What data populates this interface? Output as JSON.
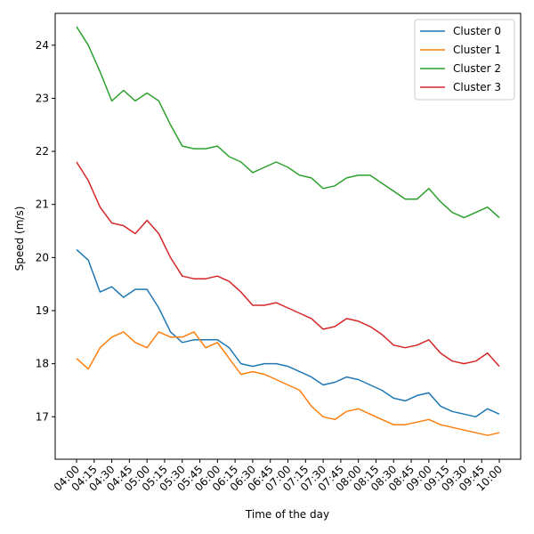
{
  "chart_data": {
    "type": "line",
    "xlabel": "Time of the day",
    "ylabel": "Speed (m/s)",
    "x_ticks": [
      "04:00",
      "04:15",
      "04:30",
      "04:45",
      "05:00",
      "05:15",
      "05:30",
      "05:45",
      "06:00",
      "06:15",
      "06:30",
      "06:45",
      "07:00",
      "07:15",
      "07:30",
      "07:45",
      "08:00",
      "08:15",
      "08:30",
      "08:45",
      "09:00",
      "09:15",
      "09:30",
      "09:45",
      "10:00"
    ],
    "ylim": [
      16.2,
      24.6
    ],
    "y_ticks": [
      17,
      18,
      19,
      20,
      21,
      22,
      23,
      24
    ],
    "legend_position": "top-right",
    "grid": false,
    "series": [
      {
        "name": "Cluster 0",
        "color": "#1f77b4",
        "x": [
          "04:00",
          "04:10",
          "04:20",
          "04:30",
          "04:40",
          "04:50",
          "05:00",
          "05:10",
          "05:20",
          "05:30",
          "05:40",
          "05:50",
          "06:00",
          "06:10",
          "06:20",
          "06:30",
          "06:40",
          "06:50",
          "07:00",
          "07:10",
          "07:20",
          "07:30",
          "07:40",
          "07:50",
          "08:00",
          "08:10",
          "08:20",
          "08:30",
          "08:40",
          "08:50",
          "09:00",
          "09:10",
          "09:20",
          "09:30",
          "09:40",
          "09:50",
          "10:00"
        ],
        "values": [
          20.15,
          19.95,
          19.35,
          19.45,
          19.25,
          19.4,
          19.4,
          19.05,
          18.6,
          18.4,
          18.45,
          18.45,
          18.45,
          18.3,
          18.0,
          17.95,
          18.0,
          18.0,
          17.95,
          17.85,
          17.75,
          17.6,
          17.65,
          17.75,
          17.7,
          17.6,
          17.5,
          17.35,
          17.3,
          17.4,
          17.45,
          17.2,
          17.1,
          17.05,
          17.0,
          17.15,
          17.05
        ]
      },
      {
        "name": "Cluster 1",
        "color": "#ff7f0e",
        "x": [
          "04:00",
          "04:10",
          "04:20",
          "04:30",
          "04:40",
          "04:50",
          "05:00",
          "05:10",
          "05:20",
          "05:30",
          "05:40",
          "05:50",
          "06:00",
          "06:10",
          "06:20",
          "06:30",
          "06:40",
          "06:50",
          "07:00",
          "07:10",
          "07:20",
          "07:30",
          "07:40",
          "07:50",
          "08:00",
          "08:10",
          "08:20",
          "08:30",
          "08:40",
          "08:50",
          "09:00",
          "09:10",
          "09:20",
          "09:30",
          "09:40",
          "09:50",
          "10:00"
        ],
        "values": [
          18.1,
          17.9,
          18.3,
          18.5,
          18.6,
          18.4,
          18.3,
          18.6,
          18.5,
          18.5,
          18.6,
          18.3,
          18.4,
          18.1,
          17.8,
          17.85,
          17.8,
          17.7,
          17.6,
          17.5,
          17.2,
          17.0,
          16.95,
          17.1,
          17.15,
          17.05,
          16.95,
          16.85,
          16.85,
          16.9,
          16.95,
          16.85,
          16.8,
          16.75,
          16.7,
          16.65,
          16.7
        ]
      },
      {
        "name": "Cluster 2",
        "color": "#2ca02c",
        "x": [
          "04:00",
          "04:10",
          "04:20",
          "04:30",
          "04:40",
          "04:50",
          "05:00",
          "05:10",
          "05:20",
          "05:30",
          "05:40",
          "05:50",
          "06:00",
          "06:10",
          "06:20",
          "06:30",
          "06:40",
          "06:50",
          "07:00",
          "07:10",
          "07:20",
          "07:30",
          "07:40",
          "07:50",
          "08:00",
          "08:10",
          "08:20",
          "08:30",
          "08:40",
          "08:50",
          "09:00",
          "09:10",
          "09:20",
          "09:30",
          "09:40",
          "09:50",
          "10:00"
        ],
        "values": [
          24.35,
          24.0,
          23.5,
          22.95,
          23.15,
          22.95,
          23.1,
          22.95,
          22.5,
          22.1,
          22.05,
          22.05,
          22.1,
          21.9,
          21.8,
          21.6,
          21.7,
          21.8,
          21.7,
          21.55,
          21.5,
          21.3,
          21.35,
          21.5,
          21.55,
          21.55,
          21.4,
          21.25,
          21.1,
          21.1,
          21.3,
          21.05,
          20.85,
          20.75,
          20.85,
          20.95,
          20.75
        ]
      },
      {
        "name": "Cluster 3",
        "color": "#d62728",
        "x": [
          "04:00",
          "04:10",
          "04:20",
          "04:30",
          "04:40",
          "04:50",
          "05:00",
          "05:10",
          "05:20",
          "05:30",
          "05:40",
          "05:50",
          "06:00",
          "06:10",
          "06:20",
          "06:30",
          "06:40",
          "06:50",
          "07:00",
          "07:10",
          "07:20",
          "07:30",
          "07:40",
          "07:50",
          "08:00",
          "08:10",
          "08:20",
          "08:30",
          "08:40",
          "08:50",
          "09:00",
          "09:10",
          "09:20",
          "09:30",
          "09:40",
          "09:50",
          "10:00"
        ],
        "values": [
          21.8,
          21.45,
          20.95,
          20.65,
          20.6,
          20.45,
          20.7,
          20.45,
          20.0,
          19.65,
          19.6,
          19.6,
          19.65,
          19.55,
          19.35,
          19.1,
          19.1,
          19.15,
          19.05,
          18.95,
          18.85,
          18.65,
          18.7,
          18.85,
          18.8,
          18.7,
          18.55,
          18.35,
          18.3,
          18.35,
          18.45,
          18.2,
          18.05,
          18.0,
          18.05,
          18.2,
          17.95
        ]
      }
    ]
  }
}
